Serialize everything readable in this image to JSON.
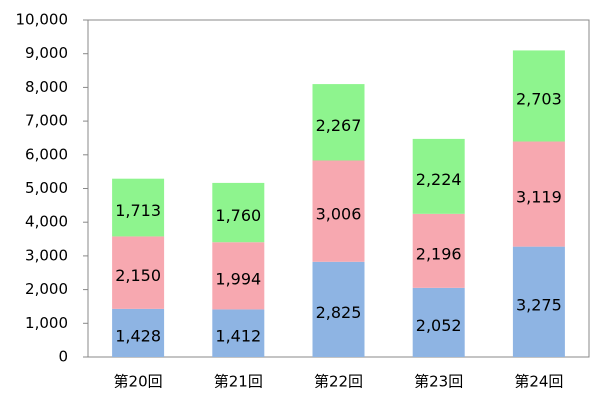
{
  "chart_data": {
    "type": "stacked-bar",
    "categories": [
      "第20回",
      "第21回",
      "第22回",
      "第23回",
      "第24回"
    ],
    "series": [
      {
        "color": "#8eb4e3",
        "values": [
          1428,
          1412,
          2825,
          2052,
          3275
        ],
        "value_labels": [
          "1,428",
          "1,412",
          "2,825",
          "2,052",
          "3,275"
        ]
      },
      {
        "color": "#f7a8b0",
        "values": [
          2150,
          1994,
          3006,
          2196,
          3119
        ],
        "value_labels": [
          "2,150",
          "1,994",
          "3,006",
          "2,196",
          "3,119"
        ]
      },
      {
        "color": "#8ef48e",
        "values": [
          1713,
          1760,
          2267,
          2224,
          2703
        ],
        "value_labels": [
          "1,713",
          "1,760",
          "2,267",
          "2,224",
          "2,703"
        ]
      }
    ],
    "ylim": [
      0,
      10000
    ],
    "yticks": [
      0,
      {
        "value": 1000,
        "label": "1,000"
      },
      {
        "value": 2000,
        "label": "2,000"
      },
      {
        "value": 3000,
        "label": "3,000"
      },
      {
        "value": 4000,
        "label": "4,000"
      },
      {
        "value": 5000,
        "label": "5,000"
      },
      {
        "value": 6000,
        "label": "6,000"
      },
      {
        "value": 7000,
        "label": "7,000"
      },
      {
        "value": 8000,
        "label": "8,000"
      },
      {
        "value": 9000,
        "label": "9,000"
      },
      {
        "value": 10000,
        "label": "10,000"
      }
    ],
    "grid": false
  }
}
